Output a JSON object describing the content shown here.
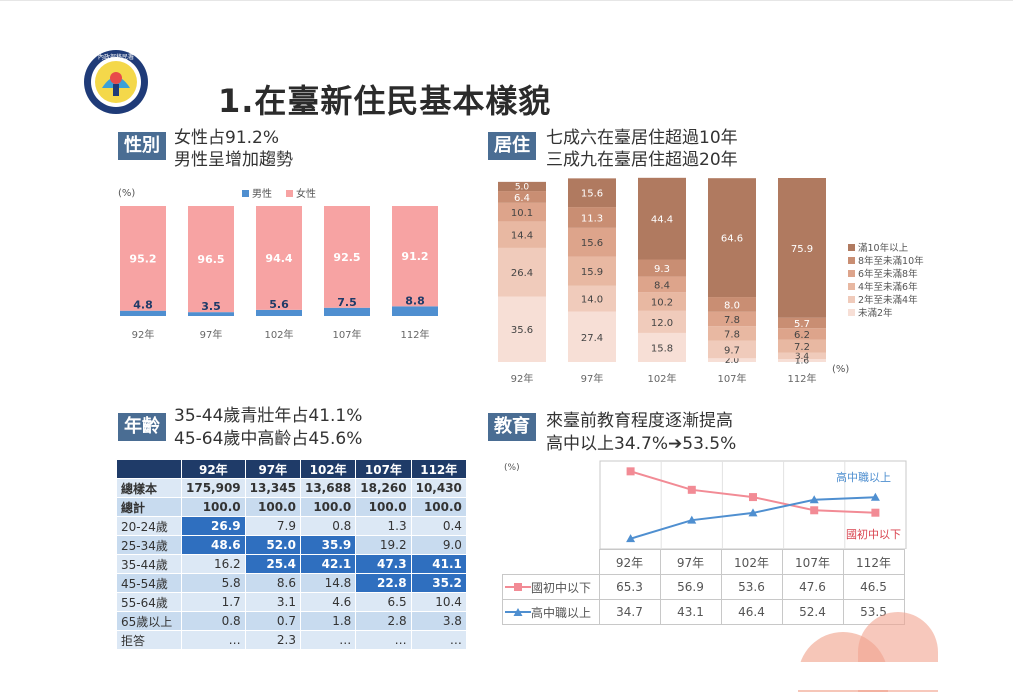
{
  "page": {
    "title": "1.在臺新住民基本樣貌",
    "logo_text": "內政部移民署"
  },
  "gender": {
    "badge": "性別",
    "subtitle_line1": "女性占91.2%",
    "subtitle_line2": "男性呈增加趨勢",
    "unit": "(%)",
    "legend": [
      "男性",
      "女性"
    ],
    "colors": {
      "male": "#4f8fd0",
      "female": "#f7a3a3"
    }
  },
  "residence": {
    "badge": "居住",
    "subtitle_line1": "七成六在臺居住超過10年",
    "subtitle_line2": "三成九在臺居住超過20年",
    "unit": "(%)",
    "colors": [
      "#b07a60",
      "#c98e73",
      "#dda48b",
      "#e8b8a2",
      "#f0cbbb",
      "#f7dfd6"
    ]
  },
  "age": {
    "badge": "年齡",
    "subtitle_line1": "35-44歲青壯年占41.1%",
    "subtitle_line2": "45-64歲中高齡占45.6%",
    "columns": [
      "",
      "92年",
      "97年",
      "102年",
      "107年",
      "112年"
    ],
    "rows": [
      {
        "label": "總樣本",
        "values": [
          "175,909",
          "13,345",
          "13,688",
          "18,260",
          "10,430"
        ],
        "hi": [
          false,
          false,
          false,
          false,
          false
        ]
      },
      {
        "label": "總計",
        "values": [
          "100.0",
          "100.0",
          "100.0",
          "100.0",
          "100.0"
        ],
        "hi": [
          false,
          false,
          false,
          false,
          false
        ]
      },
      {
        "label": "20-24歲",
        "values": [
          "26.9",
          "7.9",
          "0.8",
          "1.3",
          "0.4"
        ],
        "hi": [
          true,
          false,
          false,
          false,
          false
        ]
      },
      {
        "label": "25-34歲",
        "values": [
          "48.6",
          "52.0",
          "35.9",
          "19.2",
          "9.0"
        ],
        "hi": [
          true,
          true,
          true,
          false,
          false
        ]
      },
      {
        "label": "35-44歲",
        "values": [
          "16.2",
          "25.4",
          "42.1",
          "47.3",
          "41.1"
        ],
        "hi": [
          false,
          true,
          true,
          true,
          true
        ]
      },
      {
        "label": "45-54歲",
        "values": [
          "5.8",
          "8.6",
          "14.8",
          "22.8",
          "35.2"
        ],
        "hi": [
          false,
          false,
          false,
          true,
          true
        ]
      },
      {
        "label": "55-64歲",
        "values": [
          "1.7",
          "3.1",
          "4.6",
          "6.5",
          "10.4"
        ],
        "hi": [
          false,
          false,
          false,
          false,
          false
        ]
      },
      {
        "label": "65歲以上",
        "values": [
          "0.8",
          "0.7",
          "1.8",
          "2.8",
          "3.8"
        ],
        "hi": [
          false,
          false,
          false,
          false,
          false
        ]
      },
      {
        "label": "拒答",
        "values": [
          "…",
          "2.3",
          "…",
          "…",
          "…"
        ],
        "hi": [
          false,
          false,
          false,
          false,
          false
        ]
      }
    ]
  },
  "education": {
    "badge": "教育",
    "subtitle_line1": "來臺前教育程度逐漸提高",
    "subtitle_line2": "高中以上34.7%➔53.5%",
    "unit": "(%)",
    "colors": {
      "low": "#f28b95",
      "high": "#4f8fd0"
    }
  },
  "chart_data": [
    {
      "type": "bar",
      "categories": [
        "92年",
        "97年",
        "102年",
        "107年",
        "112年"
      ],
      "series": [
        {
          "name": "男性",
          "values": [
            4.8,
            3.5,
            5.6,
            7.5,
            8.8
          ]
        },
        {
          "name": "女性",
          "values": [
            95.2,
            96.5,
            94.4,
            92.5,
            91.2
          ]
        }
      ],
      "ylabel": "(%)",
      "stacked": true,
      "ylim": [
        0,
        100
      ],
      "legend": "top"
    },
    {
      "type": "bar",
      "categories": [
        "92年",
        "97年",
        "102年",
        "107年",
        "112年"
      ],
      "series": [
        {
          "name": "滿10年以上",
          "values": [
            5.0,
            15.6,
            44.4,
            64.6,
            75.9
          ]
        },
        {
          "name": "8年至未滿10年",
          "values": [
            6.4,
            11.3,
            9.3,
            8.0,
            5.7
          ]
        },
        {
          "name": "6年至未滿8年",
          "values": [
            10.1,
            15.6,
            8.4,
            7.8,
            6.2
          ]
        },
        {
          "name": "4年至未滿6年",
          "values": [
            14.4,
            15.9,
            10.2,
            7.8,
            7.2
          ]
        },
        {
          "name": "2年至未滿4年",
          "values": [
            26.4,
            14.0,
            12.0,
            9.7,
            3.4
          ]
        },
        {
          "name": "未滿2年",
          "values": [
            35.6,
            27.4,
            15.8,
            2.0,
            1.6
          ]
        }
      ],
      "ylabel": "(%)",
      "stacked": true,
      "ylim": [
        0,
        100
      ],
      "legend": "right"
    },
    {
      "type": "line",
      "categories": [
        "92年",
        "97年",
        "102年",
        "107年",
        "112年"
      ],
      "series": [
        {
          "name": "國初中以下",
          "values": [
            65.3,
            56.9,
            53.6,
            47.6,
            46.5
          ]
        },
        {
          "name": "高中職以上",
          "values": [
            34.7,
            43.1,
            46.4,
            52.4,
            53.5
          ]
        }
      ],
      "ylabel": "(%)",
      "ylim": [
        30,
        70
      ],
      "legend": "inline",
      "data_table": true
    }
  ]
}
